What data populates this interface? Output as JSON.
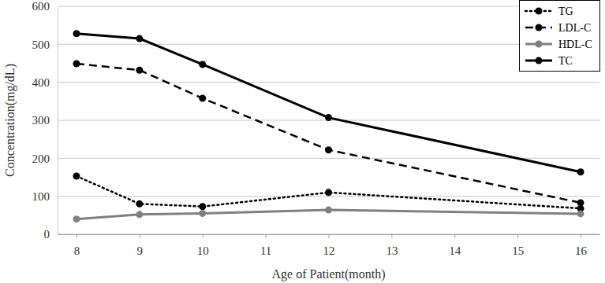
{
  "chart_data": {
    "type": "line",
    "x_label": "Age of Patient(month)",
    "y_label": "Concentration(mg/dL)",
    "x": [
      8,
      9,
      10,
      12,
      16
    ],
    "series": [
      {
        "name": "TG",
        "color": "#000000",
        "line_style": "dotted",
        "marker": "circle",
        "values": [
          153,
          80,
          73,
          110,
          68
        ]
      },
      {
        "name": "LDL-C",
        "color": "#000000",
        "line_style": "dashed",
        "marker": "circle",
        "values": [
          449,
          432,
          358,
          222,
          83
        ]
      },
      {
        "name": "HDL-C",
        "color": "#808080",
        "line_style": "solid",
        "marker": "circle",
        "values": [
          40,
          52,
          55,
          64,
          54
        ]
      },
      {
        "name": "TC",
        "color": "#000000",
        "line_style": "solid",
        "marker": "circle",
        "values": [
          528,
          515,
          447,
          307,
          164
        ]
      }
    ],
    "xlim": [
      7.7,
      16.3
    ],
    "xticks": [
      8,
      9,
      10,
      11,
      12,
      13,
      14,
      15,
      16
    ],
    "ylim": [
      0,
      600
    ],
    "yticks": [
      0,
      100,
      200,
      300,
      400,
      500,
      600
    ],
    "grid": true,
    "legend": "upper right"
  }
}
